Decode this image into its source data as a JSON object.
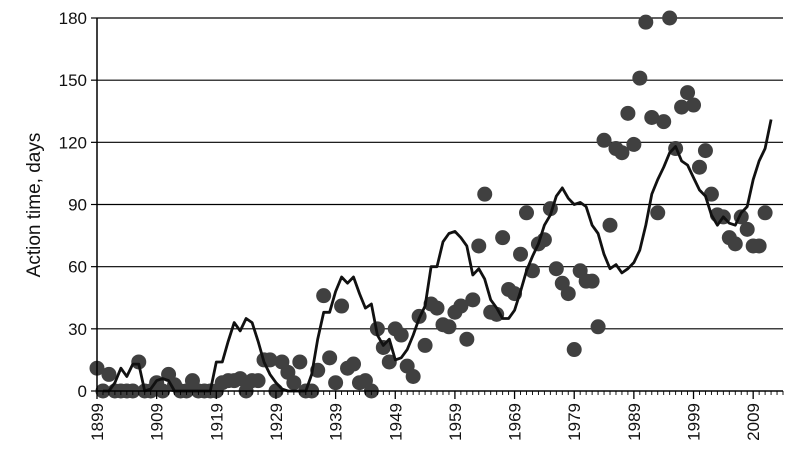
{
  "chart_data": {
    "type": "scatter",
    "title": "",
    "xlabel": "",
    "ylabel": "Action time, days",
    "xlim": [
      1899,
      2014
    ],
    "ylim": [
      0,
      180
    ],
    "yticks": [
      0,
      30,
      60,
      90,
      120,
      150,
      180
    ],
    "xticks": [
      1899,
      1909,
      1919,
      1929,
      1939,
      1949,
      1959,
      1969,
      1979,
      1989,
      1999,
      2009
    ],
    "grid": "horizontal",
    "legend": "none",
    "colors": {
      "points": "#404040",
      "line": "#111111",
      "grid": "#000000"
    },
    "series": [
      {
        "kind": "scatter",
        "points": [
          [
            1899,
            11
          ],
          [
            1900,
            0
          ],
          [
            1901,
            8
          ],
          [
            1902,
            0
          ],
          [
            1903,
            0
          ],
          [
            1904,
            0
          ],
          [
            1905,
            0
          ],
          [
            1906,
            14
          ],
          [
            1907,
            0
          ],
          [
            1908,
            0
          ],
          [
            1909,
            4
          ],
          [
            1910,
            0
          ],
          [
            1911,
            8
          ],
          [
            1912,
            3
          ],
          [
            1913,
            0
          ],
          [
            1914,
            0
          ],
          [
            1915,
            5
          ],
          [
            1916,
            0
          ],
          [
            1917,
            0
          ],
          [
            1918,
            0
          ],
          [
            1919,
            0
          ],
          [
            1920,
            4
          ],
          [
            1921,
            5
          ],
          [
            1922,
            5
          ],
          [
            1923,
            6
          ],
          [
            1924,
            0
          ],
          [
            1925,
            5
          ],
          [
            1926,
            5
          ],
          [
            1927,
            15
          ],
          [
            1928,
            15
          ],
          [
            1929,
            0
          ],
          [
            1930,
            14
          ],
          [
            1931,
            9
          ],
          [
            1932,
            4
          ],
          [
            1933,
            14
          ],
          [
            1934,
            0
          ],
          [
            1935,
            0
          ],
          [
            1936,
            10
          ],
          [
            1937,
            46
          ],
          [
            1938,
            16
          ],
          [
            1939,
            4
          ],
          [
            1940,
            41
          ],
          [
            1941,
            11
          ],
          [
            1942,
            13
          ],
          [
            1943,
            4
          ],
          [
            1944,
            5
          ],
          [
            1945,
            0
          ],
          [
            1946,
            30
          ],
          [
            1947,
            21
          ],
          [
            1948,
            14
          ],
          [
            1949,
            30
          ],
          [
            1950,
            27
          ],
          [
            1951,
            12
          ],
          [
            1952,
            7
          ],
          [
            1953,
            36
          ],
          [
            1954,
            22
          ],
          [
            1955,
            42
          ],
          [
            1956,
            40
          ],
          [
            1957,
            32
          ],
          [
            1958,
            31
          ],
          [
            1959,
            38
          ],
          [
            1960,
            41
          ],
          [
            1961,
            25
          ],
          [
            1962,
            44
          ],
          [
            1963,
            70
          ],
          [
            1964,
            95
          ],
          [
            1965,
            38
          ],
          [
            1966,
            37
          ],
          [
            1967,
            74
          ],
          [
            1968,
            49
          ],
          [
            1969,
            47
          ],
          [
            1970,
            66
          ],
          [
            1971,
            86
          ],
          [
            1972,
            58
          ],
          [
            1973,
            71
          ],
          [
            1974,
            73
          ],
          [
            1975,
            88
          ],
          [
            1976,
            59
          ],
          [
            1977,
            52
          ],
          [
            1978,
            47
          ],
          [
            1979,
            20
          ],
          [
            1980,
            58
          ],
          [
            1981,
            53
          ],
          [
            1982,
            53
          ],
          [
            1983,
            31
          ],
          [
            1984,
            121
          ],
          [
            1985,
            80
          ],
          [
            1986,
            117
          ],
          [
            1987,
            115
          ],
          [
            1988,
            134
          ],
          [
            1989,
            119
          ],
          [
            1990,
            151
          ],
          [
            1991,
            178
          ],
          [
            1992,
            132
          ],
          [
            1993,
            86
          ],
          [
            1994,
            130
          ],
          [
            1995,
            180
          ],
          [
            1996,
            117
          ],
          [
            1997,
            137
          ],
          [
            1998,
            144
          ],
          [
            1999,
            138
          ],
          [
            2000,
            108
          ],
          [
            2001,
            116
          ],
          [
            2002,
            95
          ],
          [
            2003,
            85
          ],
          [
            2004,
            84
          ],
          [
            2005,
            74
          ],
          [
            2006,
            71
          ],
          [
            2007,
            84
          ],
          [
            2008,
            78
          ],
          [
            2009,
            70
          ],
          [
            2010,
            70
          ],
          [
            2011,
            86
          ]
        ]
      },
      {
        "kind": "line",
        "points": [
          [
            1900,
            0
          ],
          [
            1901,
            0
          ],
          [
            1902,
            4
          ],
          [
            1903,
            11
          ],
          [
            1904,
            7
          ],
          [
            1905,
            13
          ],
          [
            1906,
            13
          ],
          [
            1907,
            0
          ],
          [
            1908,
            1
          ],
          [
            1909,
            5
          ],
          [
            1910,
            6
          ],
          [
            1911,
            5
          ],
          [
            1912,
            0
          ],
          [
            1913,
            0
          ],
          [
            1914,
            0
          ],
          [
            1915,
            0
          ],
          [
            1916,
            0
          ],
          [
            1917,
            0
          ],
          [
            1918,
            0
          ],
          [
            1919,
            14
          ],
          [
            1920,
            14
          ],
          [
            1921,
            24
          ],
          [
            1922,
            33
          ],
          [
            1923,
            29
          ],
          [
            1924,
            35
          ],
          [
            1925,
            33
          ],
          [
            1926,
            24
          ],
          [
            1927,
            14
          ],
          [
            1928,
            8
          ],
          [
            1929,
            4
          ],
          [
            1930,
            1
          ],
          [
            1931,
            0
          ],
          [
            1932,
            0
          ],
          [
            1933,
            0
          ],
          [
            1934,
            0
          ],
          [
            1935,
            8
          ],
          [
            1936,
            25
          ],
          [
            1937,
            38
          ],
          [
            1938,
            38
          ],
          [
            1939,
            48
          ],
          [
            1940,
            55
          ],
          [
            1941,
            52
          ],
          [
            1942,
            55
          ],
          [
            1943,
            47
          ],
          [
            1944,
            40
          ],
          [
            1945,
            42
          ],
          [
            1946,
            27
          ],
          [
            1947,
            22
          ],
          [
            1948,
            25
          ],
          [
            1949,
            15
          ],
          [
            1950,
            16
          ],
          [
            1951,
            20
          ],
          [
            1952,
            27
          ],
          [
            1953,
            35
          ],
          [
            1954,
            41
          ],
          [
            1955,
            60
          ],
          [
            1956,
            60
          ],
          [
            1957,
            72
          ],
          [
            1958,
            76
          ],
          [
            1959,
            77
          ],
          [
            1960,
            74
          ],
          [
            1961,
            70
          ],
          [
            1962,
            56
          ],
          [
            1963,
            59
          ],
          [
            1964,
            54
          ],
          [
            1965,
            44
          ],
          [
            1966,
            40
          ],
          [
            1967,
            35
          ],
          [
            1968,
            35
          ],
          [
            1969,
            39
          ],
          [
            1970,
            48
          ],
          [
            1971,
            58
          ],
          [
            1972,
            65
          ],
          [
            1973,
            71
          ],
          [
            1974,
            80
          ],
          [
            1975,
            85
          ],
          [
            1976,
            94
          ],
          [
            1977,
            98
          ],
          [
            1978,
            93
          ],
          [
            1979,
            90
          ],
          [
            1980,
            91
          ],
          [
            1981,
            89
          ],
          [
            1982,
            80
          ],
          [
            1983,
            76
          ],
          [
            1984,
            66
          ],
          [
            1985,
            59
          ],
          [
            1986,
            61
          ],
          [
            1987,
            57
          ],
          [
            1988,
            59
          ],
          [
            1989,
            62
          ],
          [
            1990,
            68
          ],
          [
            1991,
            80
          ],
          [
            1992,
            95
          ],
          [
            1993,
            102
          ],
          [
            1994,
            108
          ],
          [
            1995,
            115
          ],
          [
            1996,
            118
          ],
          [
            1997,
            111
          ],
          [
            1998,
            109
          ],
          [
            1999,
            103
          ],
          [
            2000,
            97
          ],
          [
            2001,
            94
          ],
          [
            2002,
            85
          ],
          [
            2003,
            80
          ],
          [
            2004,
            84
          ],
          [
            2005,
            81
          ],
          [
            2006,
            80
          ],
          [
            2007,
            86
          ],
          [
            2008,
            89
          ],
          [
            2009,
            102
          ],
          [
            2010,
            111
          ],
          [
            2011,
            117
          ],
          [
            2012,
            131
          ]
        ]
      }
    ]
  }
}
